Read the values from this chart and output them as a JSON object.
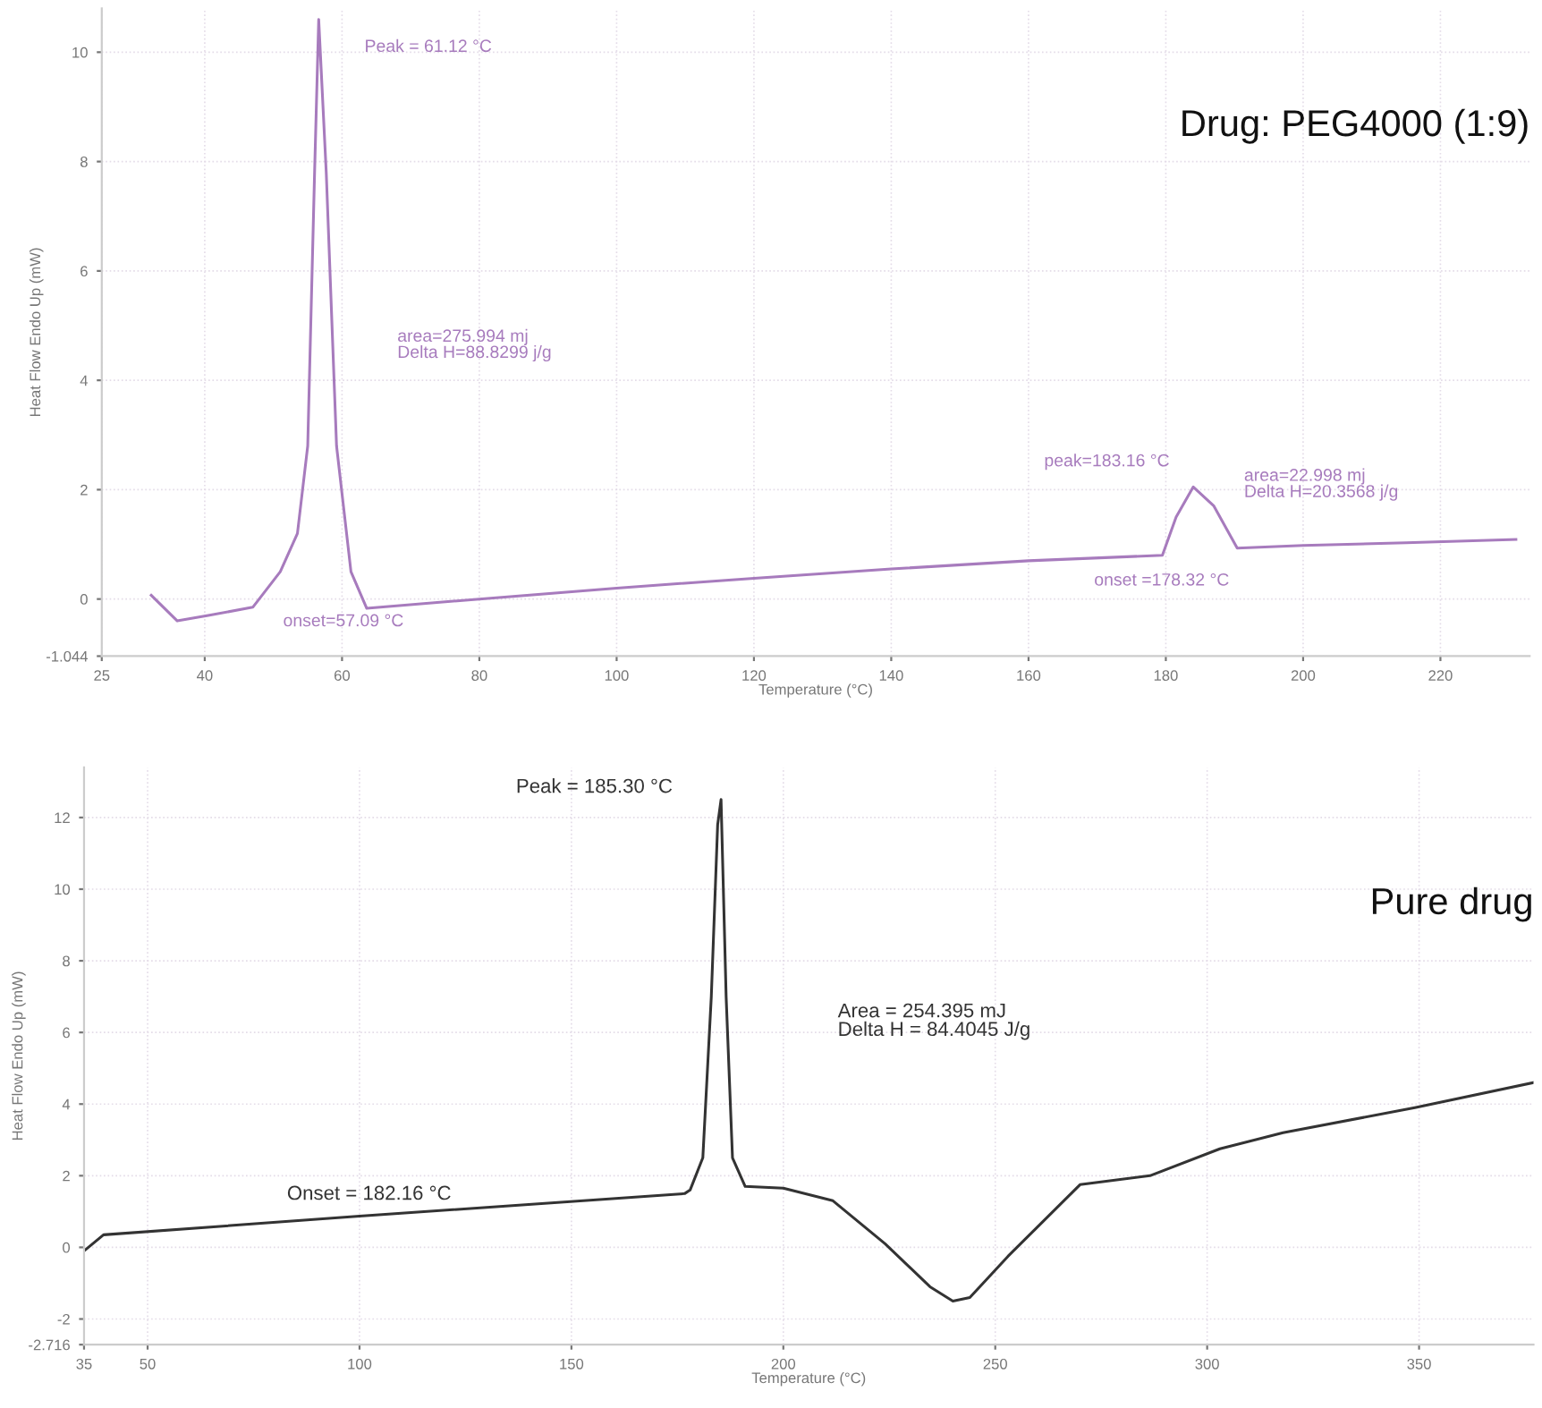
{
  "chart_data": [
    {
      "type": "line",
      "title": "Drug: PEG4000 (1:9)",
      "xlabel": "Temperature (°C)",
      "ylabel": "Heat Flow Endo Up (mW)",
      "x": [
        32.2,
        36,
        40.5,
        47,
        51,
        53.5,
        55,
        56,
        56.6,
        57.7,
        59.2,
        61.3,
        63.6,
        80,
        100,
        120,
        140,
        160,
        179.5,
        181.5,
        184,
        187,
        190.4,
        200,
        215,
        231
      ],
      "series": [
        {
          "color": "#a77bbd",
          "values": [
            0.07,
            -0.4,
            -0.3,
            -0.15,
            0.5,
            1.2,
            2.8,
            7.8,
            10.6,
            7.8,
            2.8,
            0.5,
            -0.17,
            0.0,
            0.2,
            0.38,
            0.55,
            0.7,
            0.8,
            1.5,
            2.05,
            1.7,
            0.93,
            0.98,
            1.03,
            1.09
          ]
        }
      ],
      "xlim": [
        25,
        233
      ],
      "ylim": [
        -1.044,
        10.8
      ],
      "xticks": [
        25,
        40,
        60,
        80,
        100,
        120,
        140,
        160,
        180,
        200,
        220
      ],
      "yticks": [
        {
          "value": -1.044,
          "label": "-1.044"
        },
        0,
        2,
        4,
        6,
        8,
        10
      ],
      "grid": true,
      "marker": "none",
      "line_style": "solid",
      "annotations": [
        "Peak = 61.12 °C",
        "area=275.994 mj\nDelta H=88.8299 j/g",
        "onset=57.09 °C",
        "peak=183.16 °C",
        "area=22.998 mj\nDelta H=20.3568 j/g",
        "onset =178.32 °C"
      ]
    },
    {
      "type": "line",
      "title": "Pure drug",
      "xlabel": "Temperature (°C)",
      "ylabel": "Heat Flow Endo Up (mW)",
      "x": [
        35,
        39.6,
        100,
        176.7,
        178,
        181,
        183,
        184.5,
        185.3,
        186.5,
        188,
        191,
        200,
        211.7,
        224,
        234.6,
        240,
        244,
        253,
        270,
        286.5,
        303,
        317.9,
        349,
        377
      ],
      "series": [
        {
          "color": "#333333",
          "values": [
            -0.1,
            0.35,
            0.87,
            1.5,
            1.6,
            2.5,
            7.0,
            11.8,
            12.5,
            7.0,
            2.5,
            1.7,
            1.65,
            1.3,
            0.1,
            -1.1,
            -1.5,
            -1.4,
            -0.25,
            1.75,
            2.0,
            2.75,
            3.2,
            3.9,
            4.6
          ]
        }
      ],
      "xlim": [
        35,
        377
      ],
      "ylim": [
        -2.716,
        13.4
      ],
      "xticks": [
        35,
        50,
        100,
        150,
        200,
        250,
        300,
        350
      ],
      "yticks": [
        {
          "value": -2.716,
          "label": "-2.716"
        },
        -2,
        0,
        2,
        4,
        6,
        8,
        10,
        12
      ],
      "grid": true,
      "marker": "none",
      "line_style": "solid",
      "annotations": [
        "Peak = 185.30 °C",
        "Area = 254.395 mJ\nDelta H = 84.4045 J/g",
        "Onset = 182.16 °C"
      ]
    }
  ]
}
